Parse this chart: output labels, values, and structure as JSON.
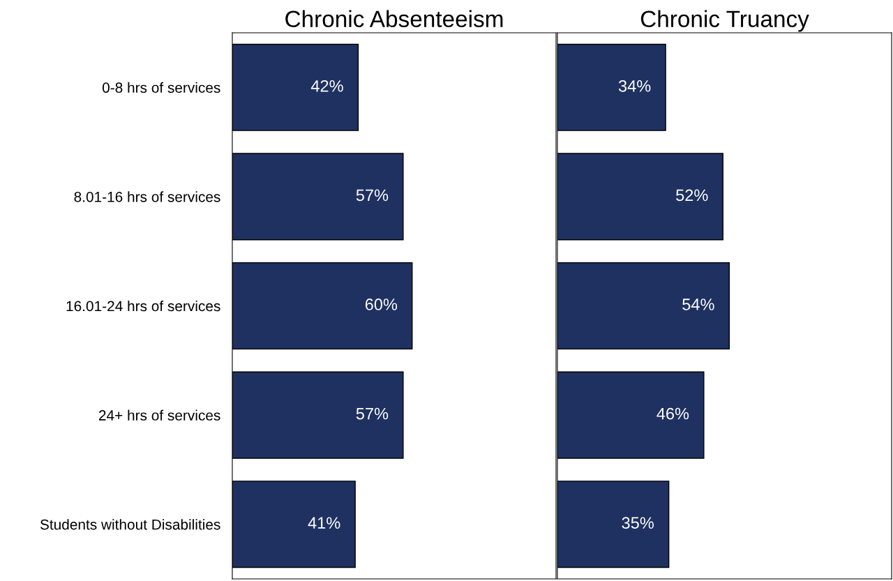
{
  "chart_data": [
    {
      "type": "bar",
      "orientation": "horizontal",
      "title": "Chronic Absenteeism",
      "categories": [
        "0-8 hrs of services",
        "8.01-16 hrs of services",
        "16.01-24 hrs of services",
        "24+ hrs of services",
        "Students without Disabilities"
      ],
      "values": [
        42,
        57,
        60,
        57,
        41
      ],
      "value_labels": [
        "42%",
        "57%",
        "60%",
        "57%",
        "41%"
      ],
      "color": "#1f3160",
      "xlim": [
        0,
        108
      ],
      "tick_labels": "y",
      "grid": false,
      "legend": false
    },
    {
      "type": "bar",
      "orientation": "horizontal",
      "title": "Chronic Truancy",
      "categories": [
        null,
        null,
        null,
        null,
        null
      ],
      "values": [
        34,
        52,
        54,
        46,
        35
      ],
      "value_labels": [
        "34%",
        "52%",
        "54%",
        "46%",
        "35%"
      ],
      "color": "#1f3160",
      "xlim": [
        0,
        105
      ],
      "tick_labels": false,
      "grid": false,
      "legend": false
    }
  ]
}
